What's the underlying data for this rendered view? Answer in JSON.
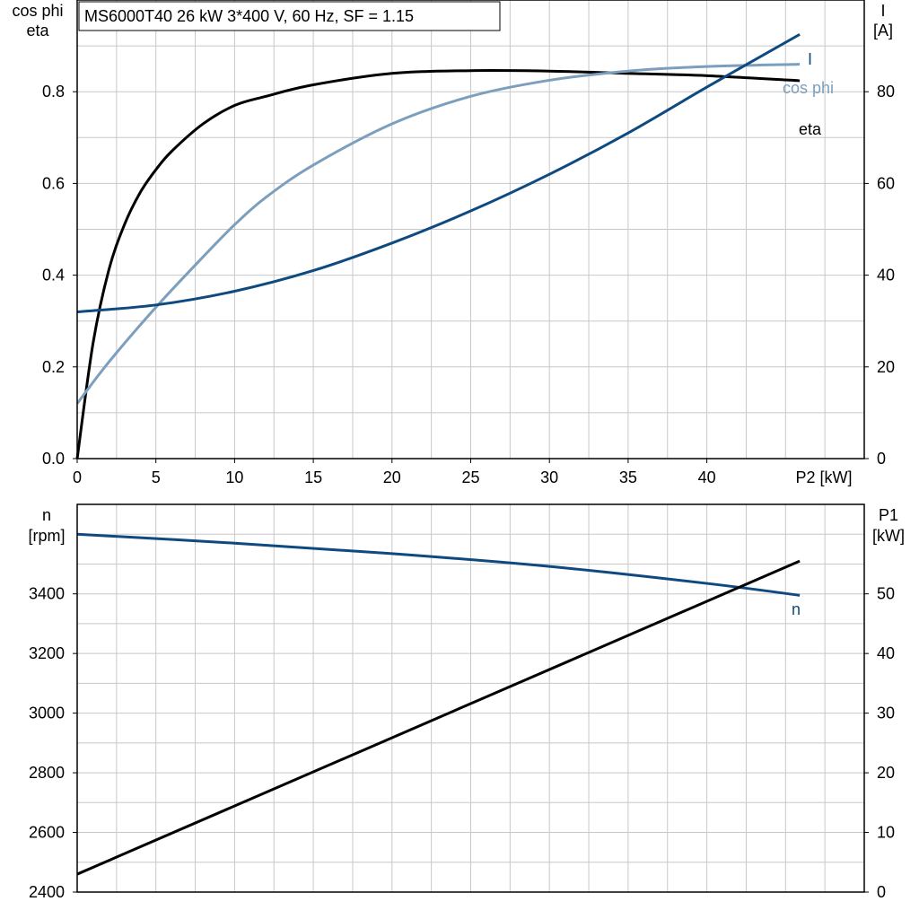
{
  "title": "MS6000T40   26 kW   3*400 V, 60 Hz, SF = 1.15",
  "colors": {
    "dark_blue": "#0e4a80",
    "light_blue": "#7b9fbd",
    "black": "#000000",
    "grid": "#c8c8c8"
  },
  "chart_data": [
    {
      "type": "line",
      "x_axis": {
        "label": "P2 [kW]",
        "range": [
          0,
          50
        ],
        "ticks": [
          0,
          5,
          10,
          15,
          20,
          25,
          30,
          35,
          40
        ]
      },
      "y_left": {
        "label_line1": "cos phi",
        "label_line2": "eta",
        "range": [
          0,
          1.0
        ],
        "ticks": [
          0.0,
          0.2,
          0.4,
          0.6,
          0.8
        ],
        "tick_labels": [
          "0.0",
          "0.2",
          "0.4",
          "0.6",
          "0.8"
        ]
      },
      "y_right": {
        "label_line1": "I",
        "label_line2": "[A]",
        "range": [
          0,
          100
        ],
        "ticks": [
          0,
          20,
          40,
          60,
          80
        ],
        "tick_labels": [
          "0",
          "20",
          "40",
          "60",
          "80"
        ]
      },
      "grid": true,
      "series": [
        {
          "name": "eta",
          "axis": "left",
          "color": "#000000",
          "x": [
            0,
            1,
            2,
            3,
            4,
            5,
            6,
            8,
            10,
            12,
            15,
            20,
            25,
            30,
            35,
            40,
            45.9
          ],
          "y": [
            0,
            0.25,
            0.41,
            0.51,
            0.58,
            0.63,
            0.67,
            0.73,
            0.77,
            0.79,
            0.815,
            0.84,
            0.846,
            0.845,
            0.84,
            0.835,
            0.824
          ]
        },
        {
          "name": "cos phi",
          "axis": "left",
          "color": "#7b9fbd",
          "x": [
            0,
            2,
            5,
            8,
            10,
            12,
            15,
            20,
            25,
            30,
            35,
            40,
            45.9
          ],
          "y": [
            0.12,
            0.21,
            0.33,
            0.44,
            0.51,
            0.57,
            0.64,
            0.73,
            0.79,
            0.825,
            0.845,
            0.855,
            0.86
          ]
        },
        {
          "name": "I",
          "axis": "right",
          "color": "#0e4a80",
          "x": [
            0,
            5,
            10,
            15,
            20,
            25,
            30,
            35,
            40,
            45.9
          ],
          "y": [
            32,
            33.5,
            36.5,
            41,
            47,
            54,
            62,
            71,
            81,
            92.5
          ]
        }
      ]
    },
    {
      "type": "line",
      "x_axis": {
        "range": [
          0,
          50
        ]
      },
      "y_left": {
        "label_line1": "n",
        "label_line2": "[rpm]",
        "range": [
          2400,
          3700
        ],
        "ticks": [
          2400,
          2600,
          2800,
          3000,
          3200,
          3400
        ],
        "tick_labels": [
          "2400",
          "2600",
          "2800",
          "3000",
          "3200",
          "3400"
        ]
      },
      "y_right": {
        "label_line1": "P1",
        "label_line2": "[kW]",
        "range": [
          0,
          65
        ],
        "ticks": [
          0,
          10,
          20,
          30,
          40,
          50
        ],
        "tick_labels": [
          "0",
          "10",
          "20",
          "30",
          "40",
          "50"
        ]
      },
      "grid": true,
      "series": [
        {
          "name": "n",
          "axis": "left",
          "color": "#0e4a80",
          "x": [
            0,
            10,
            20,
            30,
            40,
            45.9
          ],
          "y": [
            3600,
            3570,
            3535,
            3492,
            3435,
            3395
          ]
        },
        {
          "name": "",
          "axis": "right",
          "color": "#000000",
          "x": [
            0,
            45.9
          ],
          "y": [
            3,
            55.5
          ]
        }
      ]
    }
  ]
}
